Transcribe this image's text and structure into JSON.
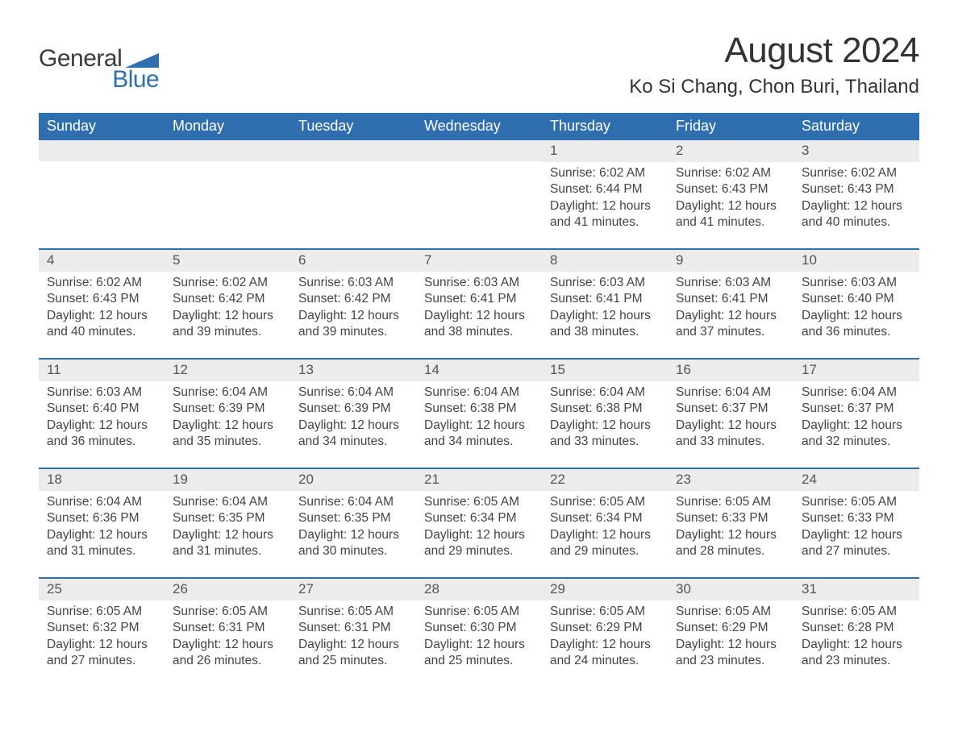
{
  "brand": {
    "word1": "General",
    "word2": "Blue",
    "accent_color": "#2f6fb0"
  },
  "title": "August 2024",
  "location": "Ko Si Chang, Chon Buri, Thailand",
  "colors": {
    "header_bg": "#2f6fb0",
    "header_text": "#ffffff",
    "daynum_bg": "#ececec",
    "body_text": "#444444",
    "row_divider": "#2f6fb0",
    "page_bg": "#ffffff"
  },
  "fonts": {
    "family": "Arial",
    "title_size_pt": 33,
    "location_size_pt": 18,
    "header_size_pt": 14,
    "body_size_pt": 12
  },
  "weekdays": [
    "Sunday",
    "Monday",
    "Tuesday",
    "Wednesday",
    "Thursday",
    "Friday",
    "Saturday"
  ],
  "layout": {
    "first_weekday_index": 4,
    "days_in_month": 31,
    "rows": 5,
    "cols": 7
  },
  "days": {
    "1": {
      "sunrise": "6:02 AM",
      "sunset": "6:44 PM",
      "daylight": "12 hours and 41 minutes."
    },
    "2": {
      "sunrise": "6:02 AM",
      "sunset": "6:43 PM",
      "daylight": "12 hours and 41 minutes."
    },
    "3": {
      "sunrise": "6:02 AM",
      "sunset": "6:43 PM",
      "daylight": "12 hours and 40 minutes."
    },
    "4": {
      "sunrise": "6:02 AM",
      "sunset": "6:43 PM",
      "daylight": "12 hours and 40 minutes."
    },
    "5": {
      "sunrise": "6:02 AM",
      "sunset": "6:42 PM",
      "daylight": "12 hours and 39 minutes."
    },
    "6": {
      "sunrise": "6:03 AM",
      "sunset": "6:42 PM",
      "daylight": "12 hours and 39 minutes."
    },
    "7": {
      "sunrise": "6:03 AM",
      "sunset": "6:41 PM",
      "daylight": "12 hours and 38 minutes."
    },
    "8": {
      "sunrise": "6:03 AM",
      "sunset": "6:41 PM",
      "daylight": "12 hours and 38 minutes."
    },
    "9": {
      "sunrise": "6:03 AM",
      "sunset": "6:41 PM",
      "daylight": "12 hours and 37 minutes."
    },
    "10": {
      "sunrise": "6:03 AM",
      "sunset": "6:40 PM",
      "daylight": "12 hours and 36 minutes."
    },
    "11": {
      "sunrise": "6:03 AM",
      "sunset": "6:40 PM",
      "daylight": "12 hours and 36 minutes."
    },
    "12": {
      "sunrise": "6:04 AM",
      "sunset": "6:39 PM",
      "daylight": "12 hours and 35 minutes."
    },
    "13": {
      "sunrise": "6:04 AM",
      "sunset": "6:39 PM",
      "daylight": "12 hours and 34 minutes."
    },
    "14": {
      "sunrise": "6:04 AM",
      "sunset": "6:38 PM",
      "daylight": "12 hours and 34 minutes."
    },
    "15": {
      "sunrise": "6:04 AM",
      "sunset": "6:38 PM",
      "daylight": "12 hours and 33 minutes."
    },
    "16": {
      "sunrise": "6:04 AM",
      "sunset": "6:37 PM",
      "daylight": "12 hours and 33 minutes."
    },
    "17": {
      "sunrise": "6:04 AM",
      "sunset": "6:37 PM",
      "daylight": "12 hours and 32 minutes."
    },
    "18": {
      "sunrise": "6:04 AM",
      "sunset": "6:36 PM",
      "daylight": "12 hours and 31 minutes."
    },
    "19": {
      "sunrise": "6:04 AM",
      "sunset": "6:35 PM",
      "daylight": "12 hours and 31 minutes."
    },
    "20": {
      "sunrise": "6:04 AM",
      "sunset": "6:35 PM",
      "daylight": "12 hours and 30 minutes."
    },
    "21": {
      "sunrise": "6:05 AM",
      "sunset": "6:34 PM",
      "daylight": "12 hours and 29 minutes."
    },
    "22": {
      "sunrise": "6:05 AM",
      "sunset": "6:34 PM",
      "daylight": "12 hours and 29 minutes."
    },
    "23": {
      "sunrise": "6:05 AM",
      "sunset": "6:33 PM",
      "daylight": "12 hours and 28 minutes."
    },
    "24": {
      "sunrise": "6:05 AM",
      "sunset": "6:33 PM",
      "daylight": "12 hours and 27 minutes."
    },
    "25": {
      "sunrise": "6:05 AM",
      "sunset": "6:32 PM",
      "daylight": "12 hours and 27 minutes."
    },
    "26": {
      "sunrise": "6:05 AM",
      "sunset": "6:31 PM",
      "daylight": "12 hours and 26 minutes."
    },
    "27": {
      "sunrise": "6:05 AM",
      "sunset": "6:31 PM",
      "daylight": "12 hours and 25 minutes."
    },
    "28": {
      "sunrise": "6:05 AM",
      "sunset": "6:30 PM",
      "daylight": "12 hours and 25 minutes."
    },
    "29": {
      "sunrise": "6:05 AM",
      "sunset": "6:29 PM",
      "daylight": "12 hours and 24 minutes."
    },
    "30": {
      "sunrise": "6:05 AM",
      "sunset": "6:29 PM",
      "daylight": "12 hours and 23 minutes."
    },
    "31": {
      "sunrise": "6:05 AM",
      "sunset": "6:28 PM",
      "daylight": "12 hours and 23 minutes."
    }
  },
  "labels": {
    "sunrise_prefix": "Sunrise: ",
    "sunset_prefix": "Sunset: ",
    "daylight_prefix": "Daylight: "
  }
}
